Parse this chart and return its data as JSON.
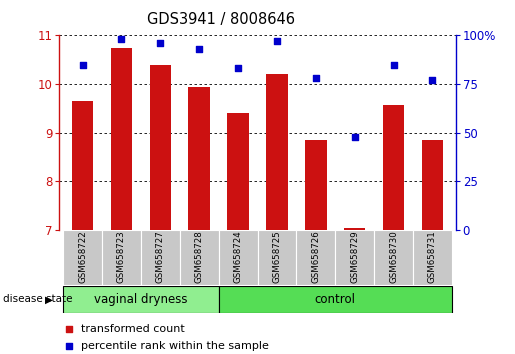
{
  "title": "GDS3941 / 8008646",
  "samples": [
    "GSM658722",
    "GSM658723",
    "GSM658727",
    "GSM658728",
    "GSM658724",
    "GSM658725",
    "GSM658726",
    "GSM658729",
    "GSM658730",
    "GSM658731"
  ],
  "red_values": [
    9.65,
    10.75,
    10.4,
    9.95,
    9.4,
    10.2,
    8.85,
    7.05,
    9.58,
    8.85
  ],
  "blue_values": [
    85,
    98,
    96,
    93,
    83,
    97,
    78,
    48,
    85,
    77
  ],
  "vaginal_dryness_count": 4,
  "control_count": 6,
  "ylim_left": [
    7,
    11
  ],
  "ylim_right": [
    0,
    100
  ],
  "yticks_left": [
    7,
    8,
    9,
    10,
    11
  ],
  "ytick_labels_right": [
    "0",
    "25",
    "50",
    "75",
    "100%"
  ],
  "bar_color": "#cc1111",
  "dot_color": "#0000cc",
  "vd_bg": "#90ee90",
  "ctrl_bg": "#55dd55",
  "label_bg": "#c8c8c8",
  "disease_state_label": "disease state",
  "vd_label": "vaginal dryness",
  "ctrl_label": "control",
  "legend_red": "transformed count",
  "legend_blue": "percentile rank within the sample",
  "bar_width": 0.55
}
